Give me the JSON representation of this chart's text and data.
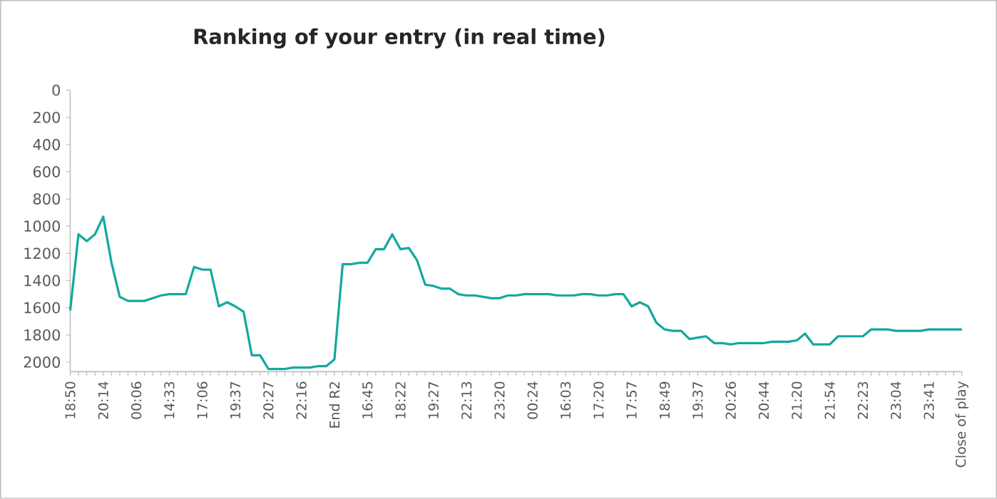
{
  "chart_data": {
    "type": "line",
    "title": "Ranking of your entry (in real time)",
    "categories": [
      "18:50",
      null,
      null,
      null,
      "20:14",
      null,
      null,
      null,
      "00:06",
      null,
      null,
      null,
      "14:33",
      null,
      null,
      null,
      "17:06",
      null,
      null,
      null,
      "19:37",
      null,
      null,
      null,
      "20:27",
      null,
      null,
      null,
      "22:16",
      null,
      null,
      null,
      "End R2",
      null,
      null,
      null,
      "16:45",
      null,
      null,
      null,
      "18:22",
      null,
      null,
      null,
      "19:27",
      null,
      null,
      null,
      "22:13",
      null,
      null,
      null,
      "23:20",
      null,
      null,
      null,
      "00:24",
      null,
      null,
      null,
      "16:03",
      null,
      null,
      null,
      "17:20",
      null,
      null,
      null,
      "17:57",
      null,
      null,
      null,
      "18:49",
      null,
      null,
      null,
      "19:37",
      null,
      null,
      null,
      "20:26",
      null,
      null,
      null,
      "20:44",
      null,
      null,
      null,
      "21:20",
      null,
      null,
      null,
      "21:54",
      null,
      null,
      null,
      "22:23",
      null,
      null,
      null,
      "23:04",
      null,
      null,
      null,
      "23:41",
      null,
      null,
      null,
      "Close of play"
    ],
    "values": [
      1620,
      1060,
      1110,
      1060,
      930,
      1270,
      1520,
      1550,
      1550,
      1550,
      1530,
      1510,
      1500,
      1500,
      1500,
      1300,
      1320,
      1320,
      1590,
      1560,
      1590,
      1630,
      1950,
      1950,
      2050,
      2050,
      2050,
      2040,
      2040,
      2040,
      2030,
      2030,
      1980,
      1280,
      1280,
      1270,
      1270,
      1170,
      1170,
      1060,
      1170,
      1160,
      1250,
      1430,
      1440,
      1460,
      1460,
      1500,
      1510,
      1510,
      1520,
      1530,
      1530,
      1510,
      1510,
      1500,
      1500,
      1500,
      1500,
      1510,
      1510,
      1510,
      1500,
      1500,
      1510,
      1510,
      1500,
      1500,
      1590,
      1560,
      1590,
      1710,
      1760,
      1770,
      1770,
      1830,
      1820,
      1810,
      1860,
      1860,
      1870,
      1860,
      1860,
      1860,
      1860,
      1850,
      1850,
      1850,
      1840,
      1790,
      1870,
      1870,
      1870,
      1810,
      1810,
      1810,
      1810,
      1760,
      1760,
      1760,
      1770,
      1770,
      1770,
      1770,
      1760,
      1760,
      1760,
      1760,
      1760
    ],
    "color": "#13a89e",
    "ylim": [
      2070,
      0
    ],
    "yticks": [
      0,
      200,
      400,
      600,
      800,
      1000,
      1200,
      1400,
      1600,
      1800,
      2000
    ]
  }
}
